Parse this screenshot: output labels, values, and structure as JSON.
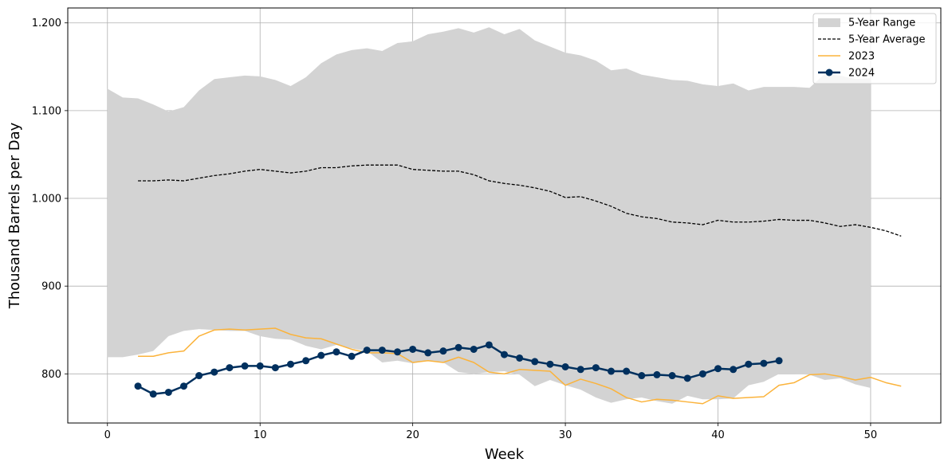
{
  "chart_data": {
    "type": "line",
    "xlabel": "Week",
    "ylabel": "Thousand Barrels per Day",
    "xlim": [
      -2.6,
      54.6
    ],
    "ylim": [
      744,
      1217
    ],
    "x_ticks": [
      0,
      10,
      20,
      30,
      40,
      50
    ],
    "y_ticks": [
      800,
      900,
      1000,
      1100,
      1200
    ],
    "y_tick_labels": [
      "800",
      "900",
      "1.000",
      "1.100",
      "1.200"
    ],
    "grid": true,
    "legend": {
      "placement": "top-right",
      "entries": [
        "5-Year Range",
        "5-Year Average",
        "2023",
        "2024"
      ]
    },
    "colors": {
      "range": "#d3d3d3",
      "average": "#000000",
      "y2023": "#fbb33b",
      "y2024": "#00305e"
    },
    "range": {
      "name": "5-Year Range",
      "x": [
        0,
        1,
        2,
        3,
        4,
        5,
        6,
        7,
        8,
        9,
        10,
        11,
        12,
        13,
        14,
        15,
        16,
        17,
        18,
        19,
        20,
        21,
        22,
        23,
        24,
        25,
        26,
        27,
        28,
        29,
        30,
        31,
        32,
        33,
        34,
        35,
        36,
        37,
        38,
        39,
        40,
        41,
        42,
        43,
        44,
        45,
        46,
        47,
        48,
        49,
        50
      ],
      "upper": [
        1125,
        1115,
        1114,
        1107,
        1099,
        1104,
        1123,
        1136,
        1138,
        1140,
        1139,
        1135,
        1128,
        1138,
        1154,
        1164,
        1169,
        1171,
        1168,
        1177,
        1179,
        1187,
        1190,
        1194,
        1189,
        1195,
        1187,
        1193,
        1180,
        1173,
        1166,
        1163,
        1157,
        1146,
        1148,
        1141,
        1138,
        1135,
        1134,
        1130,
        1128,
        1131,
        1123,
        1127,
        1127,
        1127,
        1126,
        1142,
        1140,
        1136,
        1137
      ],
      "lower": [
        819,
        819,
        822,
        826,
        843,
        849,
        851,
        850,
        849,
        849,
        843,
        840,
        839,
        832,
        828,
        833,
        829,
        826,
        813,
        815,
        812,
        815,
        813,
        802,
        800,
        802,
        803,
        799,
        786,
        793,
        787,
        782,
        773,
        767,
        771,
        773,
        769,
        766,
        775,
        771,
        771,
        772,
        787,
        791,
        800,
        800,
        799,
        793,
        795,
        788,
        784
      ]
    },
    "series": [
      {
        "name": "5-Year Average",
        "x": [
          2,
          3,
          4,
          5,
          6,
          7,
          8,
          9,
          10,
          11,
          12,
          13,
          14,
          15,
          16,
          17,
          18,
          19,
          20,
          21,
          22,
          23,
          24,
          25,
          26,
          27,
          28,
          29,
          30,
          31,
          32,
          33,
          34,
          35,
          36,
          37,
          38,
          39,
          40,
          41,
          42,
          43,
          44,
          45,
          46,
          47,
          48,
          49,
          50,
          51,
          52
        ],
        "values": [
          1020,
          1020,
          1021,
          1020,
          1023,
          1026,
          1028,
          1031,
          1033,
          1031,
          1029,
          1031,
          1035,
          1035,
          1037,
          1038,
          1038,
          1038,
          1033,
          1032,
          1031,
          1031,
          1027,
          1020,
          1017,
          1015,
          1012,
          1008,
          1001,
          1002,
          997,
          991,
          983,
          979,
          977,
          973,
          972,
          970,
          975,
          973,
          973,
          974,
          976,
          975,
          975,
          972,
          968,
          970,
          967,
          963,
          957
        ]
      },
      {
        "name": "2023",
        "x": [
          2,
          3,
          4,
          5,
          6,
          7,
          8,
          9,
          10,
          11,
          12,
          13,
          14,
          15,
          16,
          17,
          18,
          19,
          20,
          21,
          22,
          23,
          24,
          25,
          26,
          27,
          28,
          29,
          30,
          31,
          32,
          33,
          34,
          35,
          36,
          37,
          38,
          39,
          40,
          41,
          42,
          43,
          44,
          45,
          46,
          47,
          48,
          49,
          50,
          51,
          52
        ],
        "values": [
          820,
          820,
          824,
          826,
          843,
          850,
          851,
          850,
          851,
          852,
          845,
          841,
          840,
          834,
          828,
          824,
          824,
          823,
          813,
          815,
          813,
          819,
          813,
          802,
          800,
          805,
          804,
          803,
          787,
          794,
          789,
          783,
          773,
          768,
          771,
          770,
          768,
          766,
          775,
          772,
          773,
          774,
          787,
          790,
          799,
          800,
          797,
          793,
          796,
          790,
          786
        ]
      },
      {
        "name": "2024",
        "x": [
          2,
          3,
          4,
          5,
          6,
          7,
          8,
          9,
          10,
          11,
          12,
          13,
          14,
          15,
          16,
          17,
          18,
          19,
          20,
          21,
          22,
          23,
          24,
          25,
          26,
          27,
          28,
          29,
          30,
          31,
          32,
          33,
          34,
          35,
          36,
          37,
          38,
          39,
          40,
          41,
          42,
          43,
          44
        ],
        "values": [
          786,
          777,
          779,
          786,
          798,
          802,
          807,
          809,
          809,
          807,
          811,
          815,
          821,
          825,
          820,
          827,
          827,
          825,
          828,
          824,
          826,
          830,
          828,
          833,
          822,
          818,
          814,
          811,
          808,
          805,
          807,
          803,
          803,
          798,
          799,
          798,
          795,
          800,
          806,
          805,
          811,
          812,
          815
        ]
      }
    ]
  }
}
